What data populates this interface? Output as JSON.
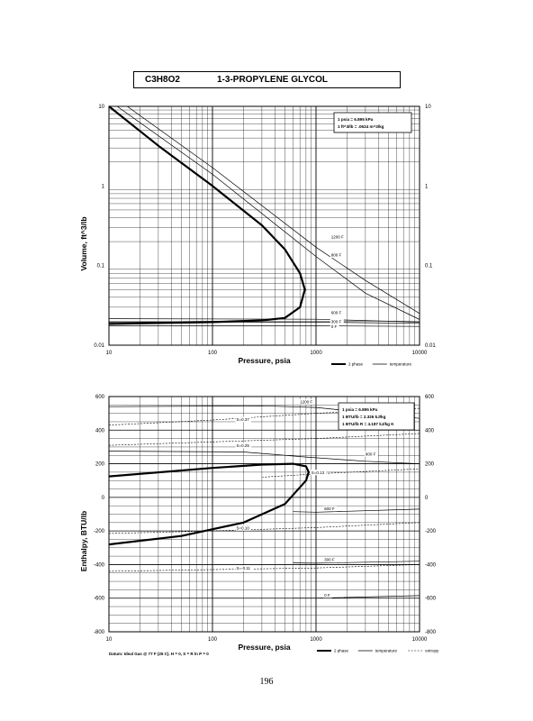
{
  "header": {
    "formula": "C3H8O2",
    "name": "1-3-PROPYLENE GLYCOL"
  },
  "page_number": "196",
  "footer_note": "Datum: Ideal Gas @ 77 F (25 C). H = 0, S = R ln P = 0",
  "chart_data": [
    {
      "type": "line",
      "xlabel": "Pressure, psia",
      "ylabel": "Volume, ft^3/lb",
      "x_scale": "log",
      "y_scale": "log",
      "xlim": [
        10,
        10000
      ],
      "ylim": [
        0.01,
        10
      ],
      "x_ticks": [
        "10",
        "100",
        "1000",
        "10000"
      ],
      "y_ticks": [
        "10",
        "1",
        "0.1",
        "0.01"
      ],
      "y_ticks_right": [
        "10",
        "1",
        "0.1",
        "0.01"
      ],
      "grid": true,
      "legend_position": "bottom-right",
      "legend": [
        "2 phase",
        "temperature"
      ],
      "annotation": [
        "1 psia  =  6.895 kPa",
        "1 ft^3/lb  =  .0624 m^3/kg"
      ],
      "isotherm_labels": [
        "1200 F",
        "800 F",
        "600 F",
        "300 F",
        "0 F"
      ],
      "series": [
        {
          "name": "2 phase",
          "points": [
            [
              10,
              10
            ],
            [
              30,
              3.2
            ],
            [
              100,
              1.0
            ],
            [
              300,
              0.32
            ],
            [
              500,
              0.16
            ],
            [
              700,
              0.08
            ],
            [
              780,
              0.05
            ],
            [
              700,
              0.03
            ],
            [
              500,
              0.022
            ],
            [
              300,
              0.0205
            ],
            [
              100,
              0.0195
            ],
            [
              10,
              0.0185
            ]
          ]
        },
        {
          "name": "temperature",
          "label": "1200 F",
          "points": [
            [
              15,
              10
            ],
            [
              100,
              1.7
            ],
            [
              1000,
              0.17
            ],
            [
              3000,
              0.065
            ],
            [
              10000,
              0.025
            ]
          ]
        },
        {
          "name": "temperature",
          "label": "800 F",
          "points": [
            [
              12,
              10
            ],
            [
              100,
              1.4
            ],
            [
              1000,
              0.13
            ],
            [
              3000,
              0.045
            ],
            [
              10000,
              0.021
            ]
          ]
        },
        {
          "name": "temperature",
          "label": "600 F",
          "points": [
            [
              10,
              0.0215
            ],
            [
              1000,
              0.0212
            ],
            [
              10000,
              0.0195
            ]
          ]
        },
        {
          "name": "temperature",
          "label": "300 F",
          "points": [
            [
              10,
              0.0195
            ],
            [
              1000,
              0.0195
            ],
            [
              10000,
              0.0188
            ]
          ]
        },
        {
          "name": "temperature",
          "label": "0 F",
          "points": [
            [
              10,
              0.0175
            ],
            [
              1000,
              0.0175
            ],
            [
              10000,
              0.0172
            ]
          ]
        }
      ]
    },
    {
      "type": "line",
      "xlabel": "Pressure, psia",
      "ylabel": "Enthalpy, BTU/lb",
      "x_scale": "log",
      "y_scale": "linear",
      "xlim": [
        10,
        10000
      ],
      "ylim": [
        -800,
        600
      ],
      "x_ticks": [
        "10",
        "100",
        "1000",
        "10000"
      ],
      "y_ticks": [
        "600",
        "400",
        "200",
        "0",
        "-200",
        "-400",
        "-600",
        "-800"
      ],
      "y_ticks_right": [
        "600",
        "400",
        "200",
        "0",
        "-200",
        "-400",
        "-600",
        "-800"
      ],
      "grid": true,
      "legend_position": "bottom-right",
      "legend": [
        "2 phase",
        "temperature",
        "entropy"
      ],
      "annotation": [
        "1 psia  =  6.895 kPa",
        "1 BTU/lb  =  2.326 kJ/kg",
        "1 BTU/lb R  =  4.187 kJ/kg K"
      ],
      "isotherm_labels": [
        "1200 F",
        "800 F",
        "600 F",
        "300 F",
        "0 F"
      ],
      "entropy_labels": [
        "S=0.37",
        "S=0.25",
        "S=0.13",
        "S=0.10",
        "S=-0.11"
      ],
      "series": [
        {
          "name": "2 phase",
          "points": [
            [
              10,
              125
            ],
            [
              100,
              175
            ],
            [
              300,
              195
            ],
            [
              600,
              200
            ],
            [
              800,
              185
            ],
            [
              850,
              150
            ],
            [
              800,
              100
            ],
            [
              500,
              -40
            ],
            [
              200,
              -150
            ],
            [
              50,
              -230
            ],
            [
              10,
              -280
            ]
          ]
        },
        {
          "name": "temperature",
          "label": "1200 F",
          "points": [
            [
              10,
              540
            ],
            [
              300,
              545
            ],
            [
              1000,
              535
            ],
            [
              3000,
              505
            ],
            [
              10000,
              470
            ]
          ]
        },
        {
          "name": "temperature",
          "label": "800 F",
          "points": [
            [
              10,
              275
            ],
            [
              200,
              270
            ],
            [
              800,
              240
            ],
            [
              3000,
              215
            ],
            [
              10000,
              200
            ]
          ]
        },
        {
          "name": "temperature",
          "label": "600 F",
          "points": [
            [
              600,
              -85
            ],
            [
              1000,
              -88
            ],
            [
              10000,
              -70
            ]
          ]
        },
        {
          "name": "temperature",
          "label": "300 F",
          "points": [
            [
              600,
              -390
            ],
            [
              1000,
              -392
            ],
            [
              10000,
              -380
            ]
          ]
        },
        {
          "name": "temperature",
          "label": "0 F",
          "points": [
            [
              600,
              -600
            ],
            [
              1000,
              -600
            ],
            [
              10000,
              -585
            ]
          ]
        },
        {
          "name": "entropy",
          "label": "S=0.37",
          "points": [
            [
              10,
              430
            ],
            [
              100,
              460
            ],
            [
              1000,
              500
            ],
            [
              10000,
              530
            ]
          ]
        },
        {
          "name": "entropy",
          "label": "S=0.25",
          "points": [
            [
              10,
              310
            ],
            [
              100,
              330
            ],
            [
              1000,
              350
            ],
            [
              10000,
              380
            ]
          ]
        },
        {
          "name": "entropy",
          "label": "S=0.13",
          "points": [
            [
              300,
              120
            ],
            [
              1000,
              140
            ],
            [
              10000,
              170
            ]
          ]
        },
        {
          "name": "entropy",
          "label": "S=0.10",
          "points": [
            [
              10,
              -215
            ],
            [
              100,
              -200
            ],
            [
              1000,
              -180
            ],
            [
              10000,
              -150
            ]
          ]
        },
        {
          "name": "entropy",
          "label": "S=-0.11",
          "points": [
            [
              10,
              -440
            ],
            [
              100,
              -430
            ],
            [
              1000,
              -420
            ],
            [
              10000,
              -400
            ]
          ]
        }
      ]
    }
  ]
}
